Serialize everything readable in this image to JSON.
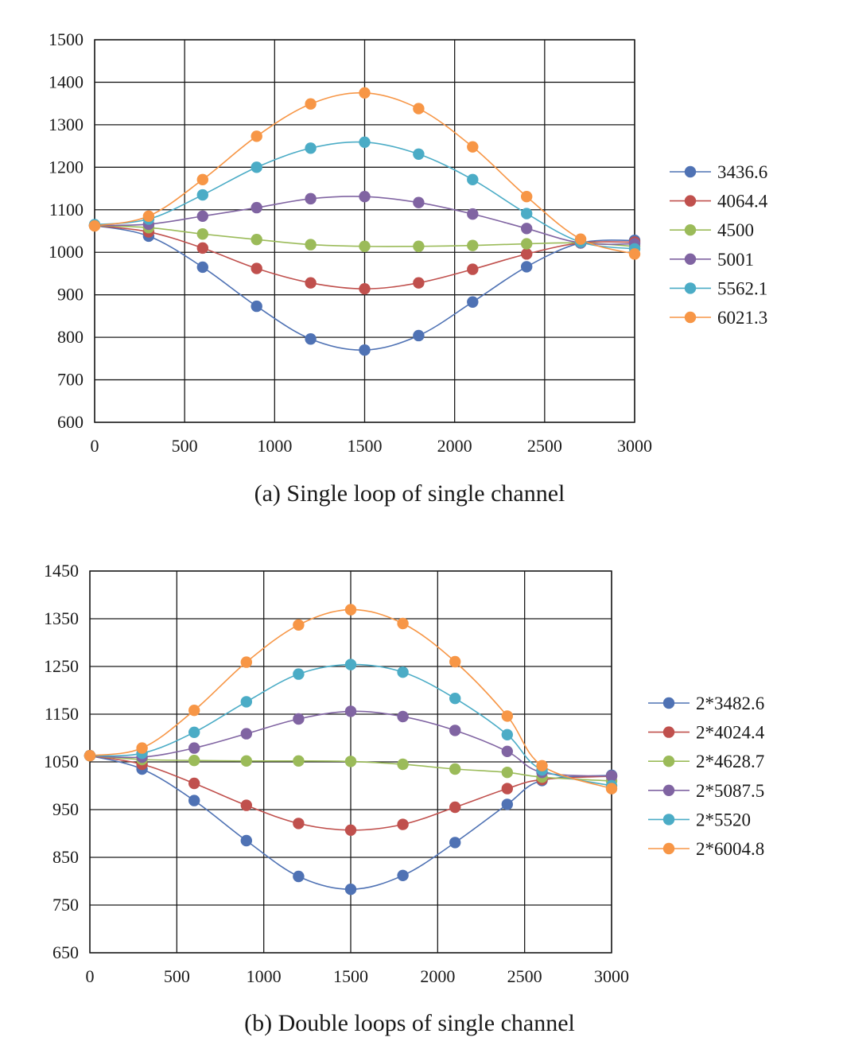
{
  "chart_data": [
    {
      "type": "line",
      "title": "",
      "caption": "(a) Single loop of single channel",
      "xlabel": "",
      "ylabel": "",
      "xlim": [
        0,
        3000
      ],
      "ylim": [
        600,
        1500
      ],
      "xticks": [
        0,
        500,
        1000,
        1500,
        2000,
        2500,
        3000
      ],
      "yticks": [
        600,
        700,
        800,
        900,
        1000,
        1100,
        1200,
        1300,
        1400,
        1500
      ],
      "grid": true,
      "legend_position": "right",
      "x": [
        0,
        300,
        600,
        900,
        1200,
        1500,
        1800,
        2100,
        2400,
        2700,
        3000
      ],
      "series": [
        {
          "name": "3436.6",
          "color": "#4f72b4",
          "values": [
            1063,
            1038,
            965,
            873,
            796,
            770,
            804,
            883,
            966,
            1022,
            1028
          ]
        },
        {
          "name": "4064.4",
          "color": "#c0504d",
          "values": [
            1063,
            1048,
            1010,
            962,
            928,
            914,
            928,
            960,
            996,
            1022,
            1024
          ]
        },
        {
          "name": "4500",
          "color": "#9bbb59",
          "values": [
            1063,
            1058,
            1043,
            1030,
            1018,
            1014,
            1014,
            1016,
            1020,
            1022,
            1014
          ]
        },
        {
          "name": "5001",
          "color": "#8064a2",
          "values": [
            1063,
            1066,
            1085,
            1105,
            1126,
            1131,
            1117,
            1090,
            1056,
            1022,
            1020
          ]
        },
        {
          "name": "5562.1",
          "color": "#4bacc6",
          "values": [
            1065,
            1078,
            1135,
            1200,
            1245,
            1259,
            1231,
            1171,
            1091,
            1024,
            1008
          ]
        },
        {
          "name": "6021.3",
          "color": "#f79646",
          "values": [
            1062,
            1085,
            1171,
            1273,
            1349,
            1375,
            1338,
            1248,
            1131,
            1031,
            996
          ]
        }
      ]
    },
    {
      "type": "line",
      "title": "",
      "caption": "(b) Double loops of single channel",
      "xlabel": "",
      "ylabel": "",
      "xlim": [
        0,
        3000
      ],
      "ylim": [
        650,
        1450
      ],
      "xticks": [
        0,
        500,
        1000,
        1500,
        2000,
        2500,
        3000
      ],
      "yticks": [
        650,
        750,
        850,
        950,
        1050,
        1150,
        1250,
        1350,
        1450
      ],
      "grid": true,
      "legend_position": "right",
      "x": [
        0,
        300,
        600,
        900,
        1200,
        1500,
        1800,
        2100,
        2400,
        2600,
        3000
      ],
      "series": [
        {
          "name": "2*3482.6",
          "color": "#4f72b4",
          "values": [
            1063,
            1035,
            969,
            885,
            810,
            783,
            812,
            881,
            961,
            1011,
            1022
          ]
        },
        {
          "name": "2*4024.4",
          "color": "#c0504d",
          "values": [
            1063,
            1045,
            1005,
            959,
            921,
            907,
            919,
            955,
            994,
            1013,
            1020
          ]
        },
        {
          "name": "2*4628.7",
          "color": "#9bbb59",
          "values": [
            1063,
            1055,
            1053,
            1052,
            1052,
            1051,
            1045,
            1035,
            1028,
            1018,
            1010
          ]
        },
        {
          "name": "2*5087.5",
          "color": "#8064a2",
          "values": [
            1063,
            1060,
            1079,
            1109,
            1140,
            1156,
            1145,
            1116,
            1072,
            1028,
            1020
          ]
        },
        {
          "name": "2*5520",
          "color": "#4bacc6",
          "values": [
            1063,
            1068,
            1112,
            1176,
            1234,
            1254,
            1238,
            1183,
            1107,
            1033,
            1000
          ]
        },
        {
          "name": "2*6004.8",
          "color": "#f79646",
          "values": [
            1063,
            1079,
            1158,
            1259,
            1337,
            1369,
            1340,
            1260,
            1146,
            1042,
            994
          ]
        }
      ]
    }
  ]
}
